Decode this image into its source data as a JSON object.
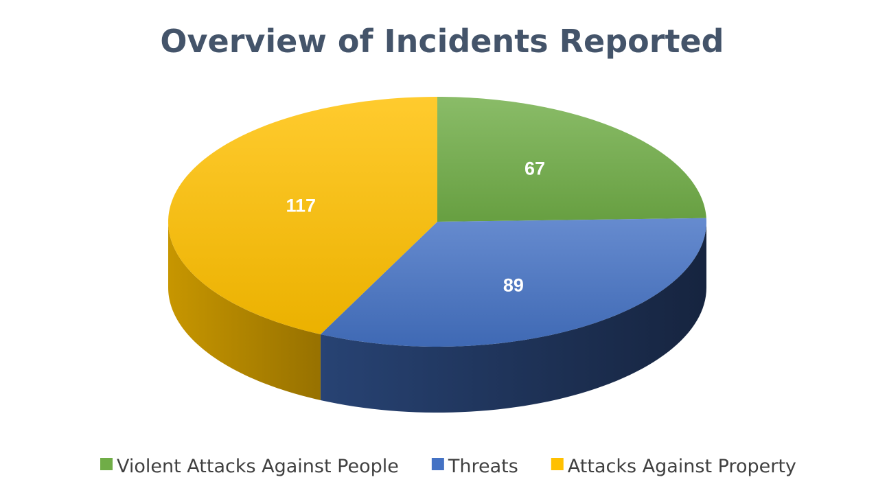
{
  "chart_data": {
    "type": "pie",
    "style": "3d",
    "title": "Overview of Incidents Reported",
    "categories": [
      "Violent Attacks Against People",
      "Threats",
      "Attacks Against Property"
    ],
    "values": [
      67,
      89,
      117
    ],
    "colors": [
      "#70ad47",
      "#4472c4",
      "#ffc000"
    ],
    "data_labels": [
      "67",
      "89",
      "117"
    ],
    "legend_position": "bottom"
  }
}
